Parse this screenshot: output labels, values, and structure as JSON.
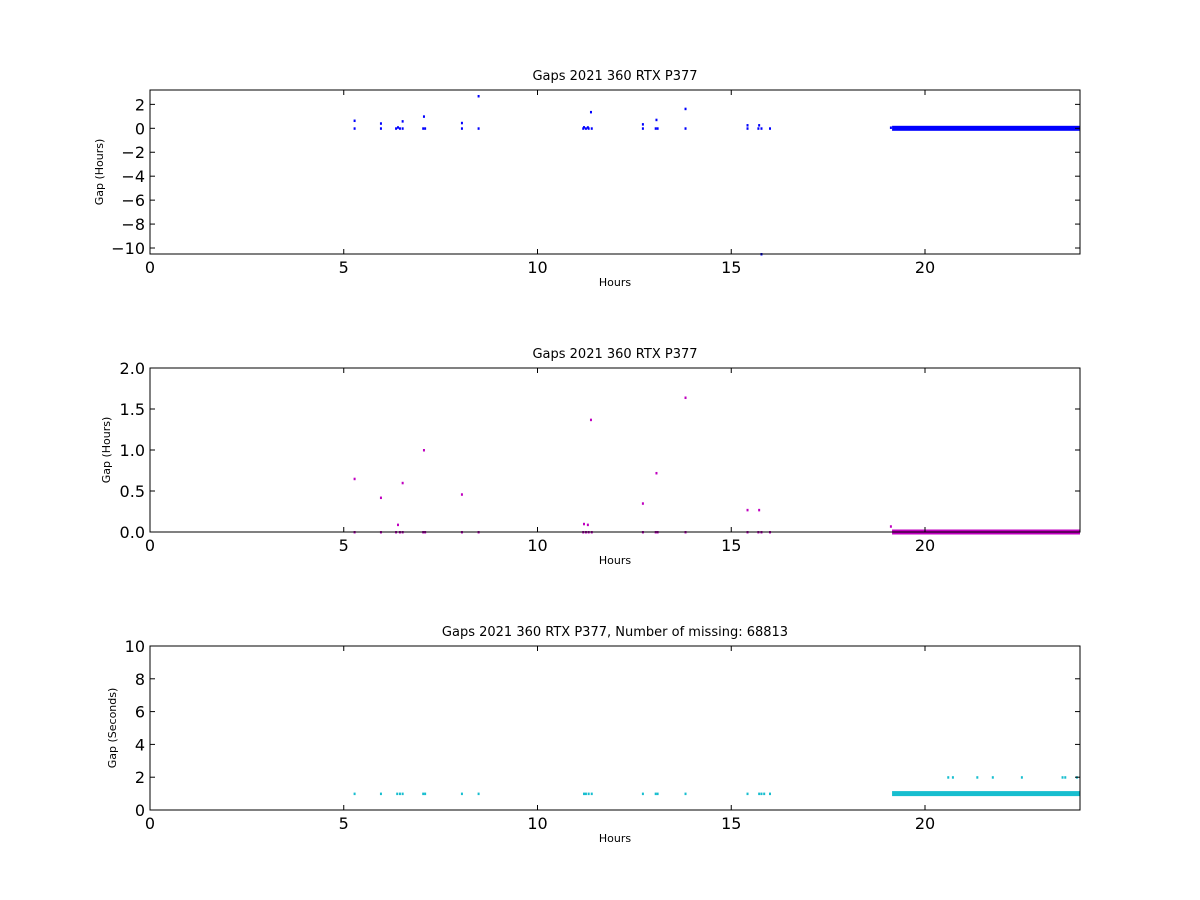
{
  "chart_data": [
    {
      "type": "scatter",
      "title": "Gaps 2021 360 RTX  P377",
      "xlabel": "Hours",
      "ylabel": "Gap (Hours)",
      "xlim": [
        0,
        24
      ],
      "ylim": [
        -10.5,
        3.2
      ],
      "xticks": [
        0,
        5,
        10,
        15,
        20
      ],
      "yticks": [
        2,
        0,
        -2,
        -4,
        -6,
        -8,
        -10
      ],
      "yticklabels": [
        "2",
        "0",
        "−2",
        "−4",
        "−6",
        "−8",
        "−10"
      ],
      "grid": false,
      "color": "#0000ff",
      "series": [
        {
          "points": [
            [
              5.28,
              0.0
            ],
            [
              5.28,
              0.65
            ],
            [
              5.96,
              0.0
            ],
            [
              5.96,
              0.42
            ],
            [
              6.35,
              0.0
            ],
            [
              6.4,
              0.09
            ],
            [
              6.45,
              0.0
            ],
            [
              6.52,
              0.6
            ],
            [
              6.52,
              0.0
            ],
            [
              7.05,
              0.0
            ],
            [
              7.07,
              1.0
            ],
            [
              7.1,
              0.0
            ],
            [
              8.05,
              0.0
            ],
            [
              8.05,
              0.46
            ],
            [
              8.48,
              0.0
            ],
            [
              8.48,
              2.7
            ],
            [
              11.18,
              0.0
            ],
            [
              11.2,
              0.1
            ],
            [
              11.25,
              0.0
            ],
            [
              11.3,
              0.09
            ],
            [
              11.32,
              0.0
            ],
            [
              11.38,
              1.37
            ],
            [
              11.4,
              0.0
            ],
            [
              12.72,
              0.0
            ],
            [
              12.72,
              0.35
            ],
            [
              13.05,
              0.0
            ],
            [
              13.07,
              0.72
            ],
            [
              13.1,
              0.0
            ],
            [
              13.82,
              0.0
            ],
            [
              13.82,
              1.64
            ],
            [
              15.42,
              0.0
            ],
            [
              15.42,
              0.27
            ],
            [
              15.7,
              0.0
            ],
            [
              15.72,
              0.27
            ],
            [
              15.78,
              0.0
            ],
            [
              15.78,
              -10.5
            ],
            [
              16.0,
              0.0
            ],
            [
              19.12,
              0.07
            ]
          ],
          "dense_segments": [
            {
              "x_start": 19.15,
              "x_end": 24.0,
              "value": 0.0
            }
          ]
        }
      ]
    },
    {
      "type": "scatter",
      "title": "Gaps 2021 360 RTX  P377",
      "xlabel": "Hours",
      "ylabel": "Gap (Hours)",
      "xlim": [
        0,
        24
      ],
      "ylim": [
        0,
        2.0
      ],
      "xticks": [
        0,
        5,
        10,
        15,
        20
      ],
      "yticks": [
        2.0,
        1.5,
        1.0,
        0.5,
        0.0
      ],
      "yticklabels": [
        "2.0",
        "1.5",
        "1.0",
        "0.5",
        "0.0"
      ],
      "grid": false,
      "color": "#c000c0",
      "series": [
        {
          "points": [
            [
              5.28,
              0.0
            ],
            [
              5.28,
              0.65
            ],
            [
              5.96,
              0.0
            ],
            [
              5.96,
              0.42
            ],
            [
              6.35,
              0.0
            ],
            [
              6.4,
              0.09
            ],
            [
              6.45,
              0.0
            ],
            [
              6.52,
              0.6
            ],
            [
              6.52,
              0.0
            ],
            [
              7.05,
              0.0
            ],
            [
              7.07,
              1.0
            ],
            [
              7.1,
              0.0
            ],
            [
              8.05,
              0.0
            ],
            [
              8.05,
              0.46
            ],
            [
              8.48,
              0.0
            ],
            [
              11.18,
              0.0
            ],
            [
              11.2,
              0.1
            ],
            [
              11.25,
              0.0
            ],
            [
              11.3,
              0.09
            ],
            [
              11.32,
              0.0
            ],
            [
              11.38,
              1.37
            ],
            [
              11.4,
              0.0
            ],
            [
              12.72,
              0.0
            ],
            [
              12.72,
              0.35
            ],
            [
              13.05,
              0.0
            ],
            [
              13.07,
              0.72
            ],
            [
              13.1,
              0.0
            ],
            [
              13.82,
              0.0
            ],
            [
              13.82,
              1.64
            ],
            [
              15.42,
              0.0
            ],
            [
              15.42,
              0.27
            ],
            [
              15.7,
              0.0
            ],
            [
              15.72,
              0.27
            ],
            [
              15.78,
              0.0
            ],
            [
              16.0,
              0.0
            ],
            [
              19.12,
              0.07
            ]
          ],
          "dense_segments": [
            {
              "x_start": 19.15,
              "x_end": 24.0,
              "value": 0.0
            }
          ]
        }
      ]
    },
    {
      "type": "scatter",
      "title": "Gaps 2021 360 RTX  P377, Number of missing: 68813",
      "xlabel": "Hours",
      "ylabel": "Gap (Seconds)",
      "xlim": [
        0,
        24
      ],
      "ylim": [
        0,
        10
      ],
      "xticks": [
        0,
        5,
        10,
        15,
        20
      ],
      "yticks": [
        10,
        8,
        6,
        4,
        2,
        0
      ],
      "yticklabels": [
        "10",
        "8",
        "6",
        "4",
        "2",
        "0"
      ],
      "grid": false,
      "color": "#17becf",
      "series": [
        {
          "points": [
            [
              5.28,
              1.0
            ],
            [
              5.96,
              1.0
            ],
            [
              6.38,
              1.0
            ],
            [
              6.45,
              1.0
            ],
            [
              6.52,
              1.0
            ],
            [
              7.05,
              1.0
            ],
            [
              7.1,
              1.0
            ],
            [
              8.05,
              1.0
            ],
            [
              8.48,
              1.0
            ],
            [
              11.2,
              1.0
            ],
            [
              11.25,
              1.0
            ],
            [
              11.32,
              1.0
            ],
            [
              11.4,
              1.0
            ],
            [
              12.72,
              1.0
            ],
            [
              13.05,
              1.0
            ],
            [
              13.1,
              1.0
            ],
            [
              13.82,
              1.0
            ],
            [
              15.42,
              1.0
            ],
            [
              15.72,
              1.0
            ],
            [
              15.78,
              1.0
            ],
            [
              15.85,
              1.0
            ],
            [
              16.0,
              1.0
            ],
            [
              20.6,
              2.0
            ],
            [
              20.72,
              2.0
            ],
            [
              21.35,
              2.0
            ],
            [
              21.75,
              2.0
            ],
            [
              22.5,
              2.0
            ],
            [
              23.55,
              2.0
            ],
            [
              23.62,
              2.0
            ],
            [
              23.92,
              2.0
            ]
          ],
          "dense_segments": [
            {
              "x_start": 19.15,
              "x_end": 24.0,
              "value": 1.0
            }
          ]
        }
      ]
    }
  ]
}
